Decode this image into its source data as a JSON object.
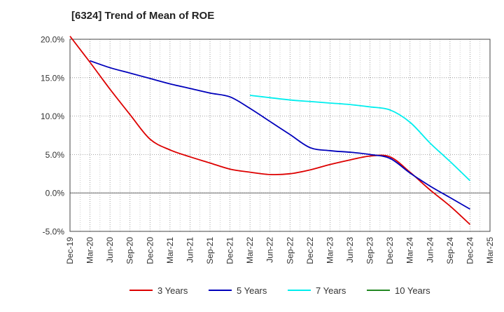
{
  "chart_data": {
    "type": "line",
    "title": "[6324]  Trend of Mean of ROE",
    "xlabel": "",
    "ylabel": "",
    "x_labels": [
      "Dec-19",
      "Mar-20",
      "Jun-20",
      "Sep-20",
      "Dec-20",
      "Mar-21",
      "Jun-21",
      "Sep-21",
      "Dec-21",
      "Mar-22",
      "Jun-22",
      "Sep-22",
      "Dec-22",
      "Mar-23",
      "Jun-23",
      "Sep-23",
      "Dec-23",
      "Mar-24",
      "Jun-24",
      "Sep-24",
      "Dec-24",
      "Mar-25"
    ],
    "y_ticks": [
      "20.0%",
      "15.0%",
      "10.0%",
      "5.0%",
      "0.0%",
      "-5.0%"
    ],
    "ylim": [
      -5,
      20
    ],
    "grid": true,
    "legend_position": "bottom",
    "series": [
      {
        "name": "3 Years",
        "color": "#dd0000",
        "x_labels": [
          "Dec-19",
          "Mar-20",
          "Jun-20",
          "Sep-20",
          "Dec-20",
          "Mar-21",
          "Jun-21",
          "Sep-21",
          "Dec-21",
          "Mar-22",
          "Jun-22",
          "Sep-22",
          "Dec-22",
          "Mar-23",
          "Jun-23",
          "Sep-23",
          "Dec-23",
          "Mar-24",
          "Jun-24",
          "Sep-24",
          "Dec-24"
        ],
        "values": [
          20.4,
          17.0,
          13.5,
          10.2,
          7.0,
          5.6,
          4.7,
          3.9,
          3.1,
          2.7,
          2.4,
          2.5,
          3.0,
          3.7,
          4.3,
          4.8,
          4.7,
          2.7,
          0.4,
          -1.7,
          -4.1
        ]
      },
      {
        "name": "5 Years",
        "color": "#0000bb",
        "x_labels": [
          "Mar-20",
          "Jun-20",
          "Sep-20",
          "Dec-20",
          "Mar-21",
          "Jun-21",
          "Sep-21",
          "Dec-21",
          "Mar-22",
          "Jun-22",
          "Sep-22",
          "Dec-22",
          "Mar-23",
          "Jun-23",
          "Sep-23",
          "Dec-23",
          "Mar-24",
          "Jun-24",
          "Sep-24",
          "Dec-24"
        ],
        "values": [
          17.2,
          16.3,
          15.6,
          14.9,
          14.2,
          13.6,
          13.0,
          12.5,
          11.0,
          9.3,
          7.6,
          5.9,
          5.5,
          5.3,
          5.0,
          4.5,
          2.6,
          0.9,
          -0.6,
          -2.1
        ]
      },
      {
        "name": "7 Years",
        "color": "#00eeee",
        "x_labels": [
          "Mar-22",
          "Jun-22",
          "Sep-22",
          "Dec-22",
          "Mar-23",
          "Jun-23",
          "Sep-23",
          "Dec-23",
          "Mar-24",
          "Jun-24",
          "Sep-24",
          "Dec-24"
        ],
        "values": [
          12.7,
          12.4,
          12.1,
          11.9,
          11.7,
          11.5,
          11.2,
          10.8,
          9.2,
          6.5,
          4.1,
          1.6
        ]
      },
      {
        "name": "10 Years",
        "color": "#228822",
        "x_labels": [],
        "values": []
      }
    ]
  }
}
